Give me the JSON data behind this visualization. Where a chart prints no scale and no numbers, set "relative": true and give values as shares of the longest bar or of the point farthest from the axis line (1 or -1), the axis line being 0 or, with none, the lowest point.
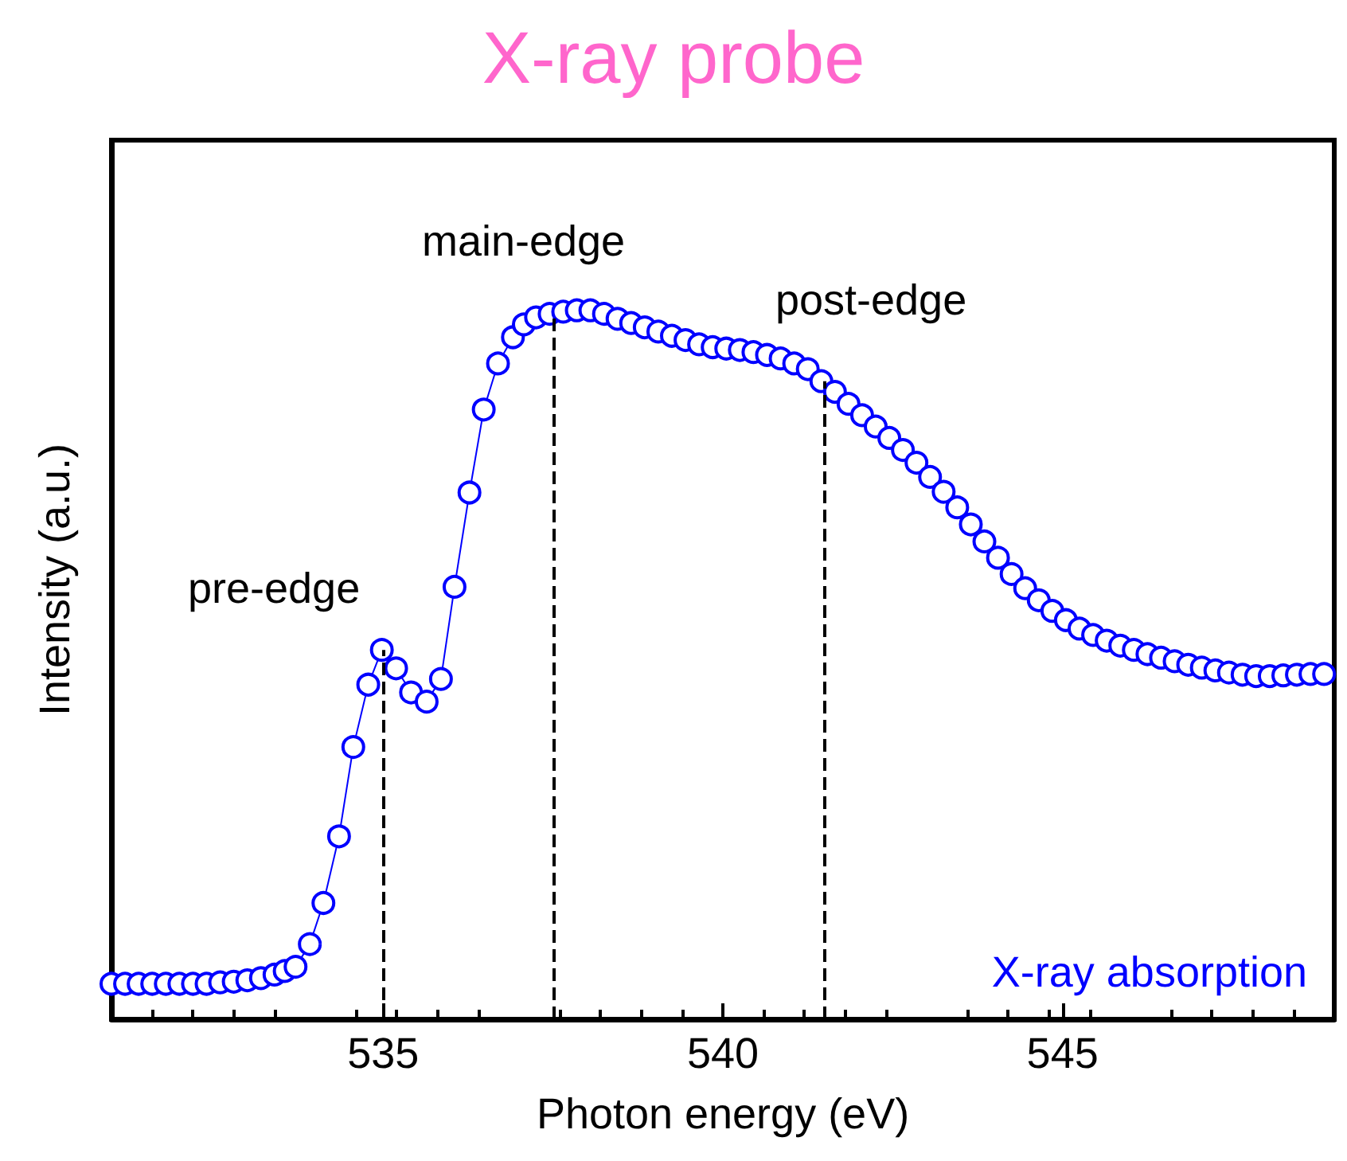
{
  "chart_data": {
    "type": "line",
    "title": "X-ray probe",
    "xlabel": "Photon energy (eV)",
    "ylabel": "Intensity (a.u.)",
    "relative": true,
    "marker": "circle",
    "line_style": "solid",
    "legend": "bottom right",
    "grid": false,
    "xlim": [
      531,
      549
    ],
    "xticks": [
      535,
      540,
      545
    ],
    "x": [
      531.0,
      531.2,
      531.4,
      531.6,
      531.8,
      532.0,
      532.2,
      532.4,
      532.6,
      532.8,
      533.0,
      533.2,
      533.4,
      533.55,
      533.71,
      533.92,
      534.12,
      534.35,
      534.56,
      534.78,
      534.98,
      535.19,
      535.41,
      535.64,
      535.85,
      536.05,
      536.27,
      536.48,
      536.69,
      536.91,
      537.07,
      537.25,
      537.45,
      537.65,
      537.85,
      538.05,
      538.25,
      538.45,
      538.65,
      538.85,
      539.05,
      539.25,
      539.45,
      539.65,
      539.85,
      540.05,
      540.25,
      540.45,
      540.65,
      540.85,
      541.05,
      541.25,
      541.45,
      541.65,
      541.85,
      542.05,
      542.25,
      542.45,
      542.65,
      542.85,
      543.05,
      543.25,
      543.45,
      543.65,
      543.85,
      544.05,
      544.25,
      544.45,
      544.65,
      544.85,
      545.05,
      545.25,
      545.45,
      545.65,
      545.85,
      546.05,
      546.25,
      546.45,
      546.65,
      546.85,
      547.05,
      547.25,
      547.45,
      547.65,
      547.85,
      548.05,
      548.25,
      548.45,
      548.65,
      548.85
    ],
    "series": [
      {
        "name": "X-ray absorption",
        "color": "#0000ff",
        "values": [
          0.05,
          0.05,
          0.05,
          0.05,
          0.05,
          0.05,
          0.05,
          0.05,
          0.052,
          0.053,
          0.055,
          0.058,
          0.063,
          0.068,
          0.074,
          0.106,
          0.164,
          0.258,
          0.384,
          0.472,
          0.521,
          0.495,
          0.461,
          0.448,
          0.48,
          0.61,
          0.743,
          0.86,
          0.925,
          0.962,
          0.98,
          0.99,
          0.995,
          0.998,
          1.0,
          1.0,
          0.995,
          0.988,
          0.982,
          0.976,
          0.97,
          0.964,
          0.958,
          0.952,
          0.948,
          0.946,
          0.944,
          0.941,
          0.937,
          0.932,
          0.925,
          0.917,
          0.9,
          0.885,
          0.868,
          0.852,
          0.836,
          0.82,
          0.803,
          0.785,
          0.765,
          0.744,
          0.722,
          0.698,
          0.674,
          0.651,
          0.628,
          0.608,
          0.591,
          0.576,
          0.563,
          0.551,
          0.542,
          0.534,
          0.527,
          0.521,
          0.515,
          0.51,
          0.505,
          0.5,
          0.496,
          0.492,
          0.489,
          0.486,
          0.484,
          0.484,
          0.485,
          0.486,
          0.487,
          0.487
        ]
      }
    ],
    "ref_lines": [
      {
        "axis": "x",
        "value": 535.0,
        "color": "#000000",
        "line_style": "dashed"
      },
      {
        "axis": "x",
        "value": 537.5,
        "color": "#000000",
        "line_style": "dashed"
      },
      {
        "axis": "x",
        "value": 541.5,
        "color": "#000000",
        "line_style": "dashed"
      }
    ],
    "annotations": [
      "pre-edge",
      "main-edge",
      "post-edge"
    ]
  }
}
